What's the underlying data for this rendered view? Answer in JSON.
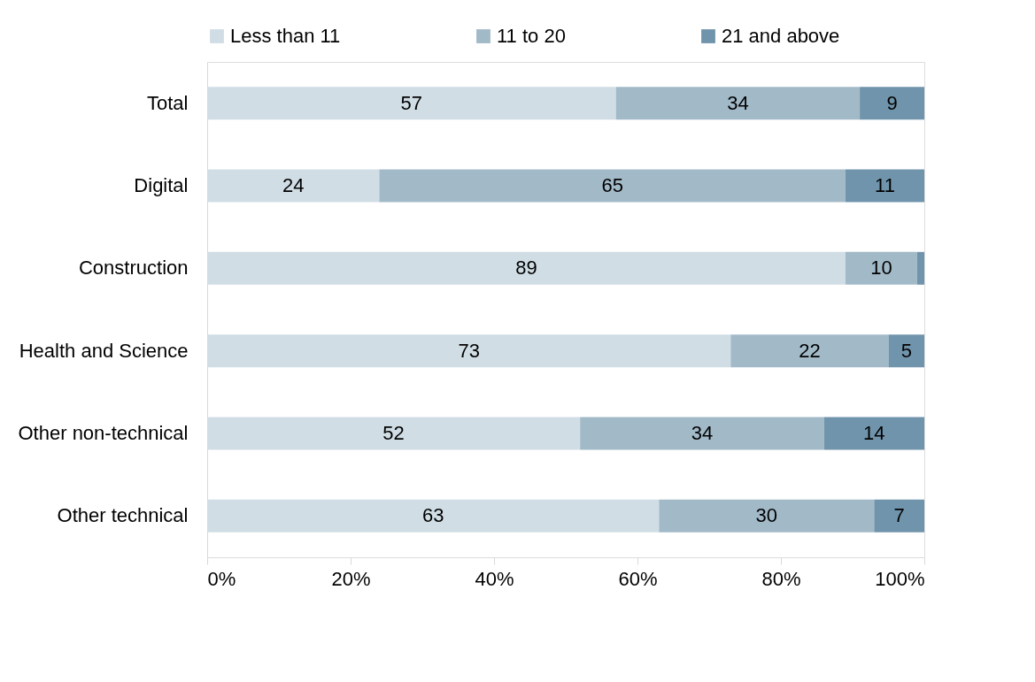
{
  "chart_data": {
    "type": "bar",
    "orientation": "horizontal",
    "stacked": true,
    "categories": [
      "Total",
      "Digital",
      "Construction",
      "Health and Science",
      "Other non-technical",
      "Other technical"
    ],
    "series": [
      {
        "name": "Less than 11",
        "color": "#d0dde5",
        "values": [
          57,
          24,
          89,
          73,
          52,
          63
        ]
      },
      {
        "name": "11 to 20",
        "color": "#a2b9c8",
        "values": [
          34,
          65,
          10,
          22,
          34,
          30
        ]
      },
      {
        "name": "21 and above",
        "color": "#7094ab",
        "values": [
          9,
          11,
          1,
          5,
          14,
          7
        ],
        "value_labels": [
          "9",
          "11",
          null,
          "5",
          "14",
          "7"
        ]
      }
    ],
    "xlim": [
      0,
      100
    ],
    "xticks": [
      {
        "value": 0,
        "label": "0%"
      },
      {
        "value": 20,
        "label": "20%"
      },
      {
        "value": 40,
        "label": "40%"
      },
      {
        "value": 60,
        "label": "60%"
      },
      {
        "value": 80,
        "label": "80%"
      },
      {
        "value": 100,
        "label": "100%"
      }
    ],
    "data_labels": true,
    "legend": "top",
    "grid": false
  }
}
